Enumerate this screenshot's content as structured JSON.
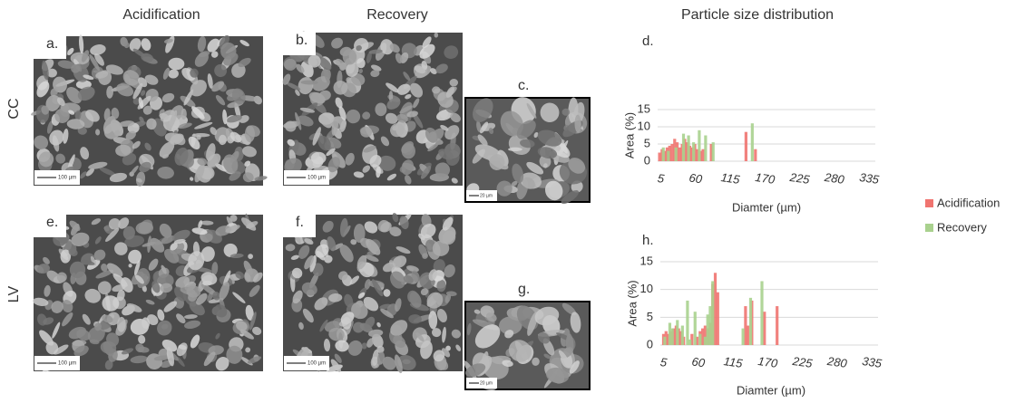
{
  "columns": [
    "Acidification",
    "Recovery"
  ],
  "psd_title": "Particle size distribution",
  "rows": [
    "CC",
    "LV"
  ],
  "panels": [
    {
      "label": "a.",
      "scale": "100 µm"
    },
    {
      "label": "b.",
      "scale": "100 µm"
    },
    {
      "label": "c.",
      "scale": "20 µm"
    },
    {
      "label": "e.",
      "scale": "100 µm"
    },
    {
      "label": "f.",
      "scale": "100 µm"
    },
    {
      "label": "g.",
      "scale": "20 µm"
    }
  ],
  "chart_data": [
    {
      "type": "bar",
      "title": "d.",
      "y_label": "Area (%)",
      "x_label": "Diamter (µm)",
      "xlim": [
        0,
        345
      ],
      "xticks": [
        5,
        60,
        115,
        170,
        225,
        280,
        335
      ],
      "ylim": [
        0,
        15
      ],
      "yticks": [
        0,
        5,
        10,
        15
      ],
      "grid": true,
      "legend": "right",
      "series": [
        {
          "name": "Acidification",
          "color": "#f07470",
          "x": [
            3,
            7,
            11,
            15,
            19,
            23,
            27,
            31,
            35,
            39,
            43,
            47,
            51,
            55,
            59,
            63,
            68,
            72,
            85,
            140,
            155
          ],
          "values": [
            2.5,
            3.5,
            3,
            4,
            4.5,
            5,
            6.5,
            5.5,
            4,
            5,
            6.5,
            5.5,
            4.5,
            4,
            5,
            3.5,
            3,
            3.5,
            5,
            8.5,
            3.5
          ]
        },
        {
          "name": "Recovery",
          "color": "#a9d18e",
          "x": [
            9,
            17,
            29,
            41,
            49,
            57,
            66,
            76,
            88,
            150
          ],
          "values": [
            4,
            3,
            4,
            8,
            7.5,
            5.5,
            9,
            7.5,
            5.5,
            11
          ]
        }
      ]
    },
    {
      "type": "bar",
      "title": "h.",
      "y_label": "Area (%)",
      "x_label": "Diamter (µm)",
      "xlim": [
        0,
        345
      ],
      "xticks": [
        5,
        60,
        115,
        170,
        225,
        280,
        335
      ],
      "ylim": [
        0,
        15
      ],
      "yticks": [
        0,
        5,
        10,
        15
      ],
      "grid": true,
      "series": [
        {
          "color": "#f07470",
          "x": [
            5,
            9,
            13,
            17,
            21,
            25,
            29,
            33,
            37,
            50,
            58,
            63,
            67,
            71,
            75,
            79,
            83,
            87,
            91,
            135,
            139,
            145,
            165,
            185
          ],
          "values": [
            2,
            2.5,
            2,
            2.5,
            3,
            3.5,
            3,
            2.5,
            1.5,
            2,
            1.5,
            2.5,
            3,
            3.5,
            3,
            4,
            11,
            13,
            9.5,
            7,
            3.5,
            8,
            6,
            7
          ]
        },
        {
          "color": "#a9d18e",
          "x": [
            7,
            15,
            19,
            27,
            35,
            43,
            47,
            55,
            63,
            71,
            75,
            79,
            83,
            131,
            143,
            161
          ],
          "values": [
            1.5,
            4,
            3,
            4.5,
            3.5,
            8,
            1,
            6,
            2,
            1.5,
            5.5,
            7,
            11.5,
            3,
            8.5,
            11.5
          ]
        }
      ]
    }
  ]
}
